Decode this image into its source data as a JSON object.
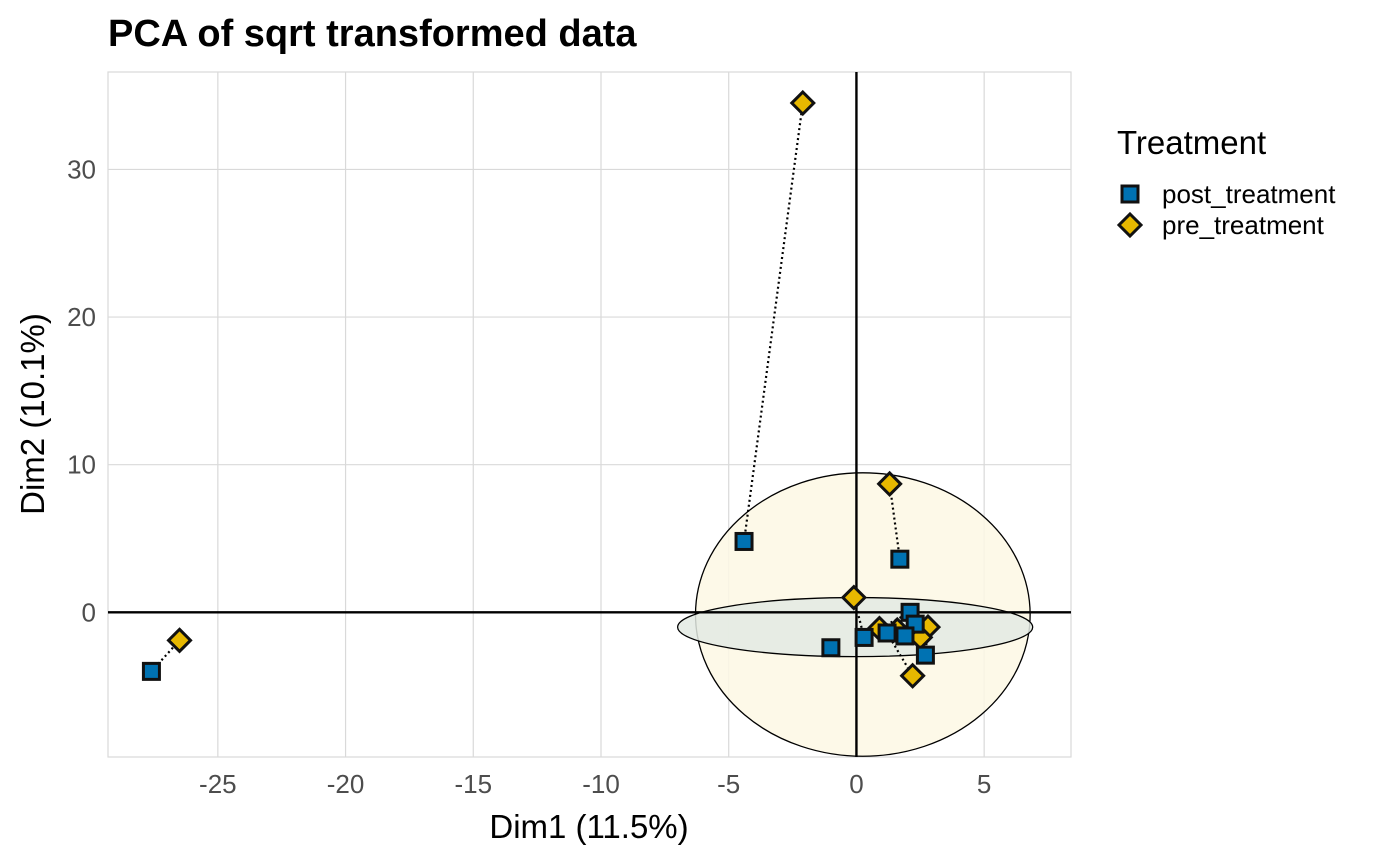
{
  "chart_data": {
    "type": "scatter",
    "title": "PCA of sqrt transformed data",
    "xlabel": "Dim1 (11.5%)",
    "ylabel": "Dim2 (10.1%)",
    "xlim": [
      -29.3,
      8.4
    ],
    "ylim": [
      -9.8,
      36.6
    ],
    "x_ticks": [
      -25,
      -20,
      -15,
      -10,
      -5,
      0,
      5
    ],
    "y_ticks": [
      0,
      10,
      20,
      30
    ],
    "x_tick_labels": [
      "-25",
      "-20",
      "-15",
      "-10",
      "-5",
      "0",
      "5"
    ],
    "y_tick_labels": [
      "0",
      "10",
      "20",
      "30"
    ],
    "grid": true,
    "reference_lines": {
      "x": 0,
      "y": 0
    },
    "legend": {
      "title": "Treatment",
      "placement": "right",
      "entries": [
        "post_treatment",
        "pre_treatment"
      ]
    },
    "series": [
      {
        "name": "post_treatment",
        "marker": "square",
        "color": "#0072B2",
        "points": [
          {
            "x": -27.6,
            "y": -4.0
          },
          {
            "x": -4.4,
            "y": 4.8
          },
          {
            "x": 1.7,
            "y": 3.6
          },
          {
            "x": -1.0,
            "y": -2.4
          },
          {
            "x": 0.3,
            "y": -1.7
          },
          {
            "x": 2.1,
            "y": 0.0
          },
          {
            "x": 2.3,
            "y": -0.8
          },
          {
            "x": 1.9,
            "y": -1.6
          },
          {
            "x": 2.7,
            "y": -2.9
          },
          {
            "x": 1.2,
            "y": -1.4
          }
        ]
      },
      {
        "name": "pre_treatment",
        "marker": "diamond",
        "color": "#E7B800",
        "points": [
          {
            "x": -26.5,
            "y": -1.9
          },
          {
            "x": -2.1,
            "y": 34.5
          },
          {
            "x": 1.3,
            "y": 8.7
          },
          {
            "x": -0.1,
            "y": 1.0
          },
          {
            "x": 0.9,
            "y": -1.1
          },
          {
            "x": 1.6,
            "y": -1.2
          },
          {
            "x": 2.2,
            "y": -4.3
          },
          {
            "x": 2.8,
            "y": -1.0
          },
          {
            "x": 2.5,
            "y": -1.7
          }
        ]
      }
    ],
    "pair_links": [
      [
        -27.6,
        -4.0,
        -26.5,
        -1.9
      ],
      [
        -4.4,
        4.8,
        -2.1,
        34.5
      ],
      [
        1.7,
        3.6,
        1.3,
        8.7
      ],
      [
        0.3,
        -1.7,
        -0.1,
        1.0
      ],
      [
        2.1,
        0.0,
        0.9,
        -1.1
      ],
      [
        1.9,
        -1.6,
        1.6,
        -1.2
      ],
      [
        2.7,
        -2.9,
        2.8,
        -1.0
      ],
      [
        1.2,
        -1.4,
        2.2,
        -4.3
      ],
      [
        2.3,
        -0.8,
        2.5,
        -1.7
      ]
    ],
    "ellipses": [
      {
        "group": "pre_treatment",
        "cx": 0.25,
        "cy": -0.15,
        "rx": 6.55,
        "ry": 9.6,
        "fill": "#FDF8E4"
      },
      {
        "group": "post_treatment",
        "cx": -0.05,
        "cy": -1.0,
        "rx": 6.95,
        "ry": 2.0,
        "fill": "#E3EAE3"
      }
    ]
  }
}
